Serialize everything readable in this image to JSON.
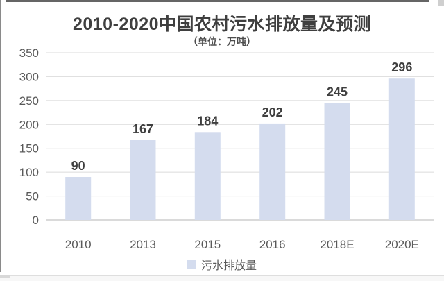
{
  "chart_data": {
    "type": "bar",
    "title": "2010-2020中国农村污水排放量及预测",
    "unit_label": "（单位：万吨）",
    "series_name": "污水排放量",
    "categories": [
      "2010",
      "2013",
      "2015",
      "2016",
      "2018E",
      "2020E"
    ],
    "values": [
      90,
      167,
      184,
      202,
      245,
      296
    ],
    "ylim": [
      0,
      350
    ],
    "yticks": [
      0,
      50,
      100,
      150,
      200,
      250,
      300,
      350
    ],
    "grid": true,
    "data_labels": true,
    "legend_position": "bottom",
    "xlabel": "",
    "ylabel": ""
  },
  "colors": {
    "bar": "#d4dcee",
    "grid": "#dbdbdb",
    "axis_line": "#c3c3c3",
    "title_text": "#3f3f3f",
    "value_text": "#3f3f3f",
    "tick_text": "#595959",
    "legend_text": "#595959"
  }
}
